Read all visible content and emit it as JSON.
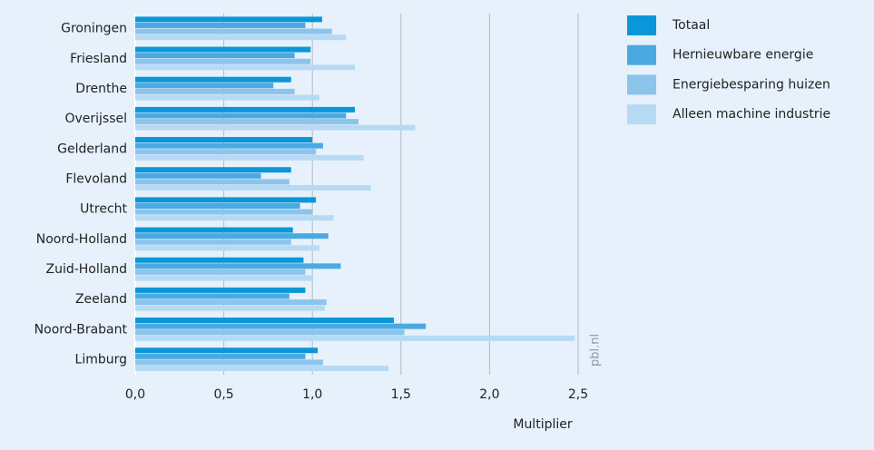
{
  "chart_data": {
    "type": "hbar",
    "x_label": "Multiplier",
    "watermark": "pbl.nl",
    "categories": [
      "Groningen",
      "Friesland",
      "Drenthe",
      "Overijssel",
      "Gelderland",
      "Flevoland",
      "Utrecht",
      "Noord-Holland",
      "Zuid-Holland",
      "Zeeland",
      "Noord-Brabant",
      "Limburg"
    ],
    "series": [
      {
        "name": "Totaal",
        "color": "#0a96d8",
        "values": [
          1.055,
          0.99,
          0.88,
          1.24,
          1.0,
          0.88,
          1.02,
          0.89,
          0.95,
          0.96,
          1.46,
          1.03
        ]
      },
      {
        "name": "Hernieuwbare energie",
        "color": "#4ba9e2",
        "values": [
          0.96,
          0.9,
          0.78,
          1.19,
          1.06,
          0.71,
          0.93,
          1.09,
          1.16,
          0.87,
          1.64,
          0.96
        ]
      },
      {
        "name": "Energiebesparing huizen",
        "color": "#8cc4ec",
        "values": [
          1.11,
          0.99,
          0.9,
          1.26,
          1.02,
          0.87,
          1.0,
          0.88,
          0.96,
          1.08,
          1.52,
          1.06
        ]
      },
      {
        "name": "Alleen machine industrie",
        "color": "#b7daf4",
        "values": [
          1.19,
          1.24,
          1.04,
          1.58,
          1.29,
          1.33,
          1.12,
          1.04,
          1.0,
          1.07,
          2.48,
          1.43
        ]
      }
    ],
    "xlim": [
      0,
      2.5
    ],
    "xticks": [
      {
        "value": 0,
        "label": "0,0"
      },
      {
        "value": 0.5,
        "label": "0,5"
      },
      {
        "value": 1,
        "label": "1,0"
      },
      {
        "value": 1.5,
        "label": "1,5"
      },
      {
        "value": 2,
        "label": "2,0"
      },
      {
        "value": 2.5,
        "label": "2,5"
      }
    ],
    "grid": true,
    "legend": "right"
  }
}
